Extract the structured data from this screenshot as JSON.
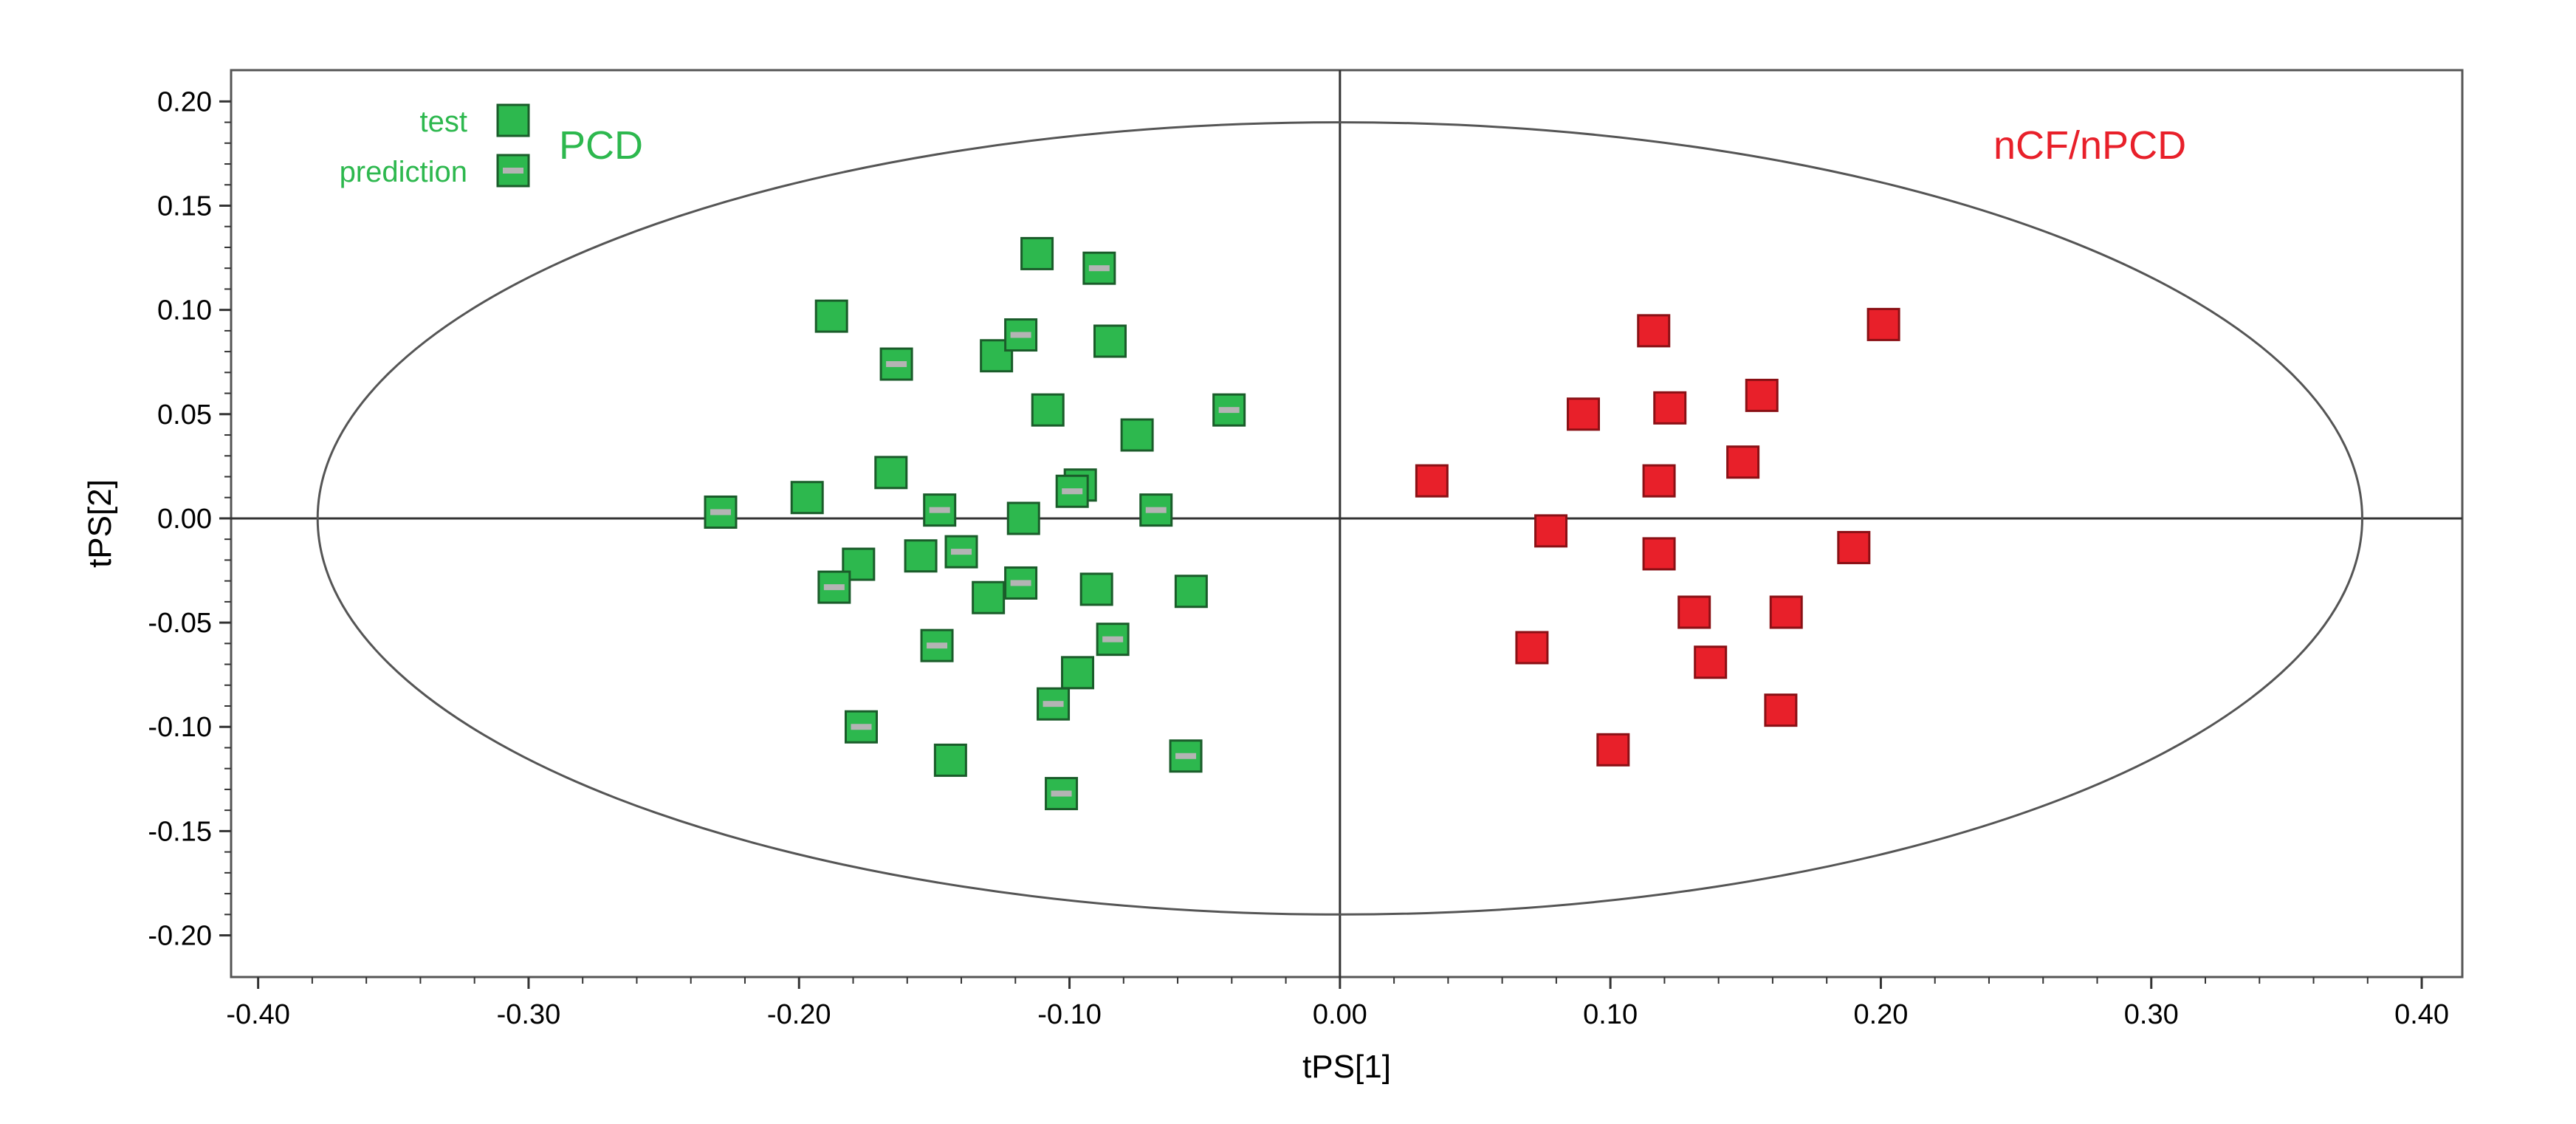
{
  "chart_data": {
    "type": "scatter",
    "title": "",
    "xlabel": "tPS[1]",
    "ylabel": "tPS[2]",
    "xlim": [
      -0.41,
      0.415
    ],
    "ylim": [
      -0.22,
      0.215
    ],
    "x_ticks": [
      "-0.40",
      "-0.30",
      "-0.20",
      "-0.10",
      "0.00",
      "0.10",
      "0.20",
      "0.30",
      "0.40"
    ],
    "y_ticks": [
      "0.20",
      "0.15",
      "0.10",
      "0.05",
      "0.00",
      "-0.05",
      "-0.10",
      "-0.15",
      "-0.20"
    ],
    "grid": false,
    "ellipse": {
      "cx": 0.0,
      "cy": 0.0,
      "rx": 0.378,
      "ry": 0.19
    },
    "legend": {
      "placement": "top-left",
      "entries": [
        {
          "label": "test",
          "marker": "filled-square"
        },
        {
          "label": "prediction",
          "marker": "barred-square"
        }
      ],
      "group_name": "PCD"
    },
    "annotations": [
      {
        "text": "nCF/nPCD",
        "color": "#e8202a"
      }
    ],
    "colors": {
      "pcd": "#2db84e",
      "ncf": "#e8202a",
      "prediction_bar": "#b4b4b4"
    },
    "series": [
      {
        "name": "PCD test",
        "color": "#2db84e",
        "points": [
          [
            -0.112,
            0.127
          ],
          [
            -0.188,
            0.097
          ],
          [
            -0.085,
            0.085
          ],
          [
            -0.127,
            0.078
          ],
          [
            -0.108,
            0.052
          ],
          [
            -0.075,
            0.04
          ],
          [
            -0.166,
            0.022
          ],
          [
            -0.096,
            0.016
          ],
          [
            -0.197,
            0.01
          ],
          [
            -0.117,
            0.0
          ],
          [
            -0.155,
            -0.018
          ],
          [
            -0.178,
            -0.022
          ],
          [
            -0.09,
            -0.034
          ],
          [
            -0.055,
            -0.035
          ],
          [
            -0.13,
            -0.038
          ],
          [
            -0.097,
            -0.074
          ],
          [
            -0.144,
            -0.116
          ]
        ]
      },
      {
        "name": "PCD prediction",
        "color": "#2db84e",
        "points": [
          [
            -0.089,
            0.12
          ],
          [
            -0.118,
            0.088
          ],
          [
            -0.164,
            0.074
          ],
          [
            -0.041,
            0.052
          ],
          [
            -0.099,
            0.013
          ],
          [
            -0.229,
            0.003
          ],
          [
            -0.148,
            0.004
          ],
          [
            -0.068,
            0.004
          ],
          [
            -0.14,
            -0.016
          ],
          [
            -0.118,
            -0.031
          ],
          [
            -0.187,
            -0.033
          ],
          [
            -0.084,
            -0.058
          ],
          [
            -0.149,
            -0.061
          ],
          [
            -0.106,
            -0.089
          ],
          [
            -0.177,
            -0.1
          ],
          [
            -0.057,
            -0.114
          ],
          [
            -0.103,
            -0.132
          ]
        ]
      },
      {
        "name": "nCF/nPCD",
        "color": "#e8202a",
        "points": [
          [
            0.201,
            0.093
          ],
          [
            0.116,
            0.09
          ],
          [
            0.156,
            0.059
          ],
          [
            0.122,
            0.053
          ],
          [
            0.09,
            0.05
          ],
          [
            0.149,
            0.027
          ],
          [
            0.034,
            0.018
          ],
          [
            0.118,
            0.018
          ],
          [
            0.078,
            -0.006
          ],
          [
            0.19,
            -0.014
          ],
          [
            0.118,
            -0.017
          ],
          [
            0.131,
            -0.045
          ],
          [
            0.165,
            -0.045
          ],
          [
            0.071,
            -0.062
          ],
          [
            0.137,
            -0.069
          ],
          [
            0.163,
            -0.092
          ],
          [
            0.101,
            -0.111
          ]
        ]
      }
    ]
  }
}
